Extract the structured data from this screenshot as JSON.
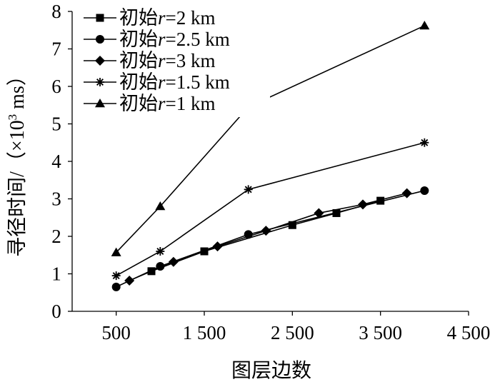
{
  "chart_data": {
    "type": "line",
    "xlabel": "图层边数",
    "ylabel_main": "寻径时间/（×10",
    "ylabel_sup": "3",
    "ylabel_tail": " ms）",
    "xlim": [
      0,
      4500
    ],
    "ylim": [
      0,
      8
    ],
    "x_ticks": [
      500,
      1500,
      2500,
      3500,
      4500
    ],
    "x_tick_labels": [
      "500",
      "1 500",
      "2 500",
      "3 500",
      "4 500"
    ],
    "y_ticks": [
      0,
      1,
      2,
      3,
      4,
      5,
      6,
      7,
      8
    ],
    "y_tick_labels": [
      "0",
      "1",
      "2",
      "3",
      "4",
      "5",
      "6",
      "7",
      "8"
    ],
    "grid": false,
    "legend_position": "top-left",
    "line_color": "#000000",
    "series": [
      {
        "name_prefix": "初始",
        "name_var": "r",
        "name_suffix": "=2 km",
        "marker": "square",
        "x": [
          900,
          1500,
          2500,
          3000,
          3500
        ],
        "y": [
          1.07,
          1.6,
          2.3,
          2.62,
          2.95
        ]
      },
      {
        "name_prefix": "初始",
        "name_var": "r",
        "name_suffix": "=2.5 km",
        "marker": "circle",
        "x": [
          500,
          1000,
          2000,
          4000
        ],
        "y": [
          0.65,
          1.2,
          2.05,
          3.22
        ]
      },
      {
        "name_prefix": "初始",
        "name_var": "r",
        "name_suffix": "=3 km",
        "marker": "diamond",
        "x": [
          650,
          1150,
          1650,
          2200,
          2800,
          3300,
          3800
        ],
        "y": [
          0.82,
          1.32,
          1.73,
          2.15,
          2.62,
          2.85,
          3.15
        ]
      },
      {
        "name_prefix": "初始",
        "name_var": "r",
        "name_suffix": "=1.5 km",
        "marker": "star",
        "x": [
          500,
          1000,
          2000,
          4000
        ],
        "y": [
          0.95,
          1.6,
          3.25,
          4.5
        ]
      },
      {
        "name_prefix": "初始",
        "name_var": "r",
        "name_suffix": "=1 km",
        "marker": "triangle",
        "x": [
          500,
          1000,
          2000,
          4000
        ],
        "y": [
          1.57,
          2.8,
          5.45,
          7.62
        ]
      }
    ]
  }
}
